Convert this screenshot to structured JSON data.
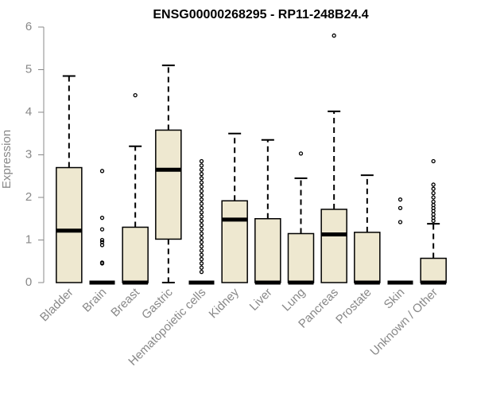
{
  "chart_data": {
    "type": "boxplot",
    "title": "ENSG00000268295 - RP11-248B24.4",
    "ylabel": "Expression",
    "ylim": [
      0,
      6
    ],
    "yticks": [
      0,
      1,
      2,
      3,
      4,
      5,
      6
    ],
    "box_fill": "#EEE8D0",
    "box_stroke": "#000000",
    "categories": [
      "Bladder",
      "Brain",
      "Breast",
      "Gastric",
      "Hematopoietic cells",
      "Kidney",
      "Liver",
      "Lung",
      "Pancreas",
      "Prostate",
      "Skin",
      "Unknown / Other"
    ],
    "boxes": [
      {
        "q1": 0,
        "median": 1.22,
        "q3": 2.7,
        "whisker_low": 0,
        "whisker_high": 4.85,
        "outliers": []
      },
      {
        "q1": 0,
        "median": 0,
        "q3": 0,
        "whisker_low": 0,
        "whisker_high": 0,
        "outliers": [
          0.45,
          0.47,
          0.88,
          0.95,
          1.0,
          1.25,
          1.52,
          2.62
        ]
      },
      {
        "q1": 0,
        "median": 0,
        "q3": 1.3,
        "whisker_low": 0,
        "whisker_high": 3.2,
        "outliers": [
          4.4
        ]
      },
      {
        "q1": 1.02,
        "median": 2.65,
        "q3": 3.58,
        "whisker_low": 0,
        "whisker_high": 5.1,
        "outliers": []
      },
      {
        "q1": 0,
        "median": 0,
        "q3": 0,
        "whisker_low": 0,
        "whisker_high": 0,
        "outliers": [
          0.25,
          0.35,
          0.45,
          0.55,
          0.65,
          0.75,
          0.85,
          0.95,
          1.05,
          1.15,
          1.25,
          1.35,
          1.45,
          1.55,
          1.65,
          1.75,
          1.85,
          1.95,
          2.05,
          2.15,
          2.25,
          2.35,
          2.45,
          2.55,
          2.65,
          2.75,
          2.85
        ]
      },
      {
        "q1": 0,
        "median": 1.48,
        "q3": 1.92,
        "whisker_low": 0,
        "whisker_high": 3.5,
        "outliers": []
      },
      {
        "q1": 0,
        "median": 0,
        "q3": 1.5,
        "whisker_low": 0,
        "whisker_high": 3.35,
        "outliers": []
      },
      {
        "q1": 0,
        "median": 0,
        "q3": 1.15,
        "whisker_low": 0,
        "whisker_high": 2.45,
        "outliers": [
          3.03
        ]
      },
      {
        "q1": 0,
        "median": 1.13,
        "q3": 1.72,
        "whisker_low": 0,
        "whisker_high": 4.02,
        "outliers": [
          5.8
        ]
      },
      {
        "q1": 0,
        "median": 0,
        "q3": 1.18,
        "whisker_low": 0,
        "whisker_high": 2.52,
        "outliers": []
      },
      {
        "q1": 0,
        "median": 0,
        "q3": 0,
        "whisker_low": 0,
        "whisker_high": 0,
        "outliers": [
          1.42,
          1.75,
          1.95
        ]
      },
      {
        "q1": 0,
        "median": 0,
        "q3": 0.57,
        "whisker_low": 0,
        "whisker_high": 1.38,
        "outliers": [
          1.45,
          1.52,
          1.6,
          1.68,
          1.75,
          1.82,
          1.9,
          2.0,
          2.1,
          2.2,
          2.3,
          2.85
        ]
      }
    ]
  }
}
